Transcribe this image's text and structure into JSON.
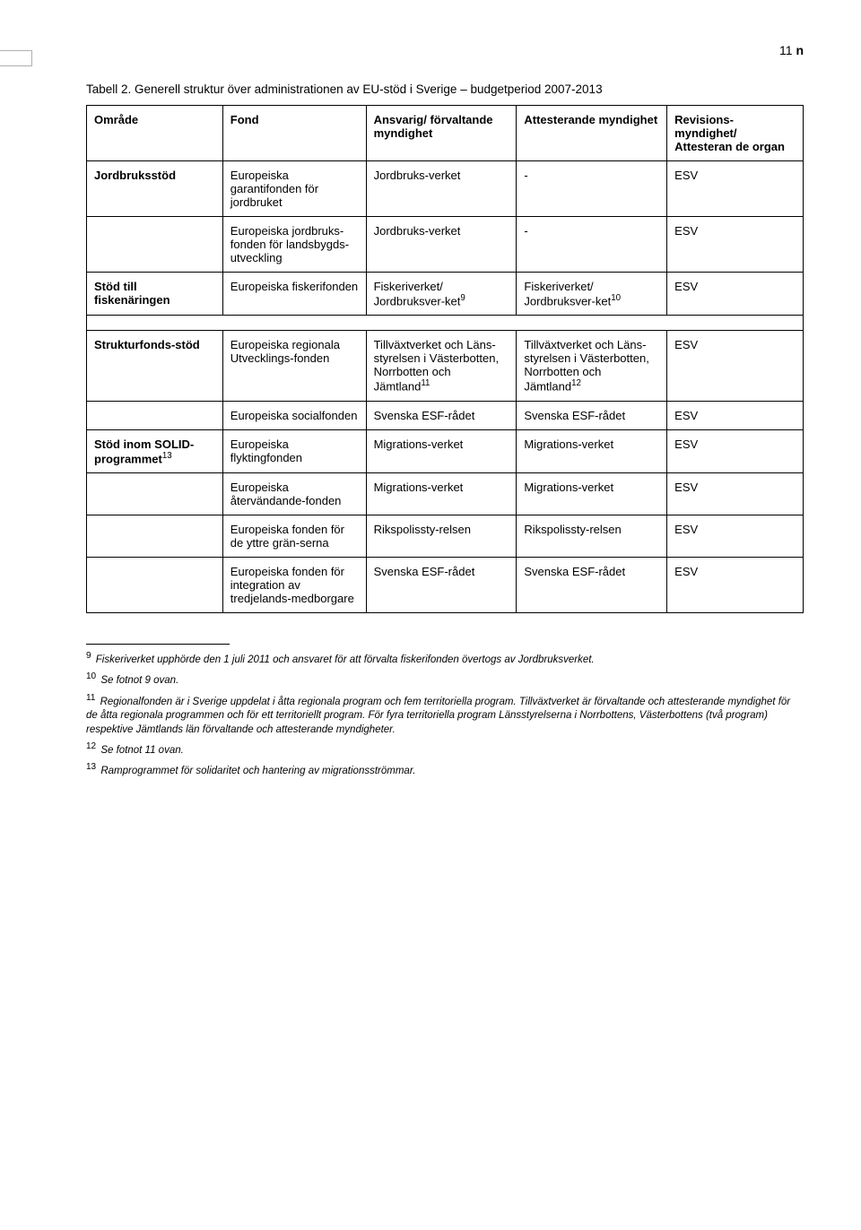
{
  "page_number_label": "11",
  "page_number_suffix": "n",
  "caption": "Tabell 2. Generell struktur över administrationen av EU-stöd i Sverige – budgetperiod 2007-2013",
  "headers": {
    "c1": "Område",
    "c2": "Fond",
    "c3": "Ansvarig/ förvaltande myndighet",
    "c4": "Attesterande myndighet",
    "c5": "Revisions-myndighet/ Attesteran de organ"
  },
  "groups": [
    {
      "rows": [
        {
          "c1": "Jordbruksstöd",
          "c1_bold": true,
          "c2": "Europeiska garantifonden för jordbruket",
          "c3": "Jordbruks-verket",
          "c4": "-",
          "c5": "ESV"
        },
        {
          "c1": "",
          "c2": "Europeiska jordbruks-fonden för landsbygds-utveckling",
          "c3": "Jordbruks-verket",
          "c4": "-",
          "c5": "ESV"
        },
        {
          "c1": "Stöd till fiskenäringen",
          "c1_bold": true,
          "c2": "Europeiska fiskerifonden",
          "c3": "Fiskeriverket/ Jordbruksver-ket",
          "c3_sup": "9",
          "c4": "Fiskeriverket/ Jordbruksver-ket",
          "c4_sup": "10",
          "c5": "ESV"
        }
      ]
    },
    {
      "rows": [
        {
          "c1": "Strukturfonds-stöd",
          "c1_bold": true,
          "c2": "Europeiska regionala Utvecklings-fonden",
          "c3": "Tillväxtverket och Läns-styrelsen i Västerbotten, Norrbotten och Jämtland",
          "c3_sup": "11",
          "c4": "Tillväxtverket och Läns-styrelsen i Västerbotten, Norrbotten och Jämtland",
          "c4_sup": "12",
          "c5": "ESV"
        },
        {
          "c1": "",
          "c2": "Europeiska socialfonden",
          "c3": "Svenska ESF-rådet",
          "c4": "Svenska ESF-rådet",
          "c5": "ESV"
        },
        {
          "c1": "Stöd inom SOLID-programmet",
          "c1_bold": true,
          "c1_sup": "13",
          "c2": "Europeiska flyktingfonden",
          "c3": "Migrations-verket",
          "c4": "Migrations-verket",
          "c5": "ESV"
        },
        {
          "c1": "",
          "c2": "Europeiska återvändande-fonden",
          "c3": "Migrations-verket",
          "c4": "Migrations-verket",
          "c5": "ESV"
        },
        {
          "c1": "",
          "c2": "Europeiska fonden för de yttre grän-serna",
          "c3": "Rikspolissty-relsen",
          "c4": "Rikspolissty-relsen",
          "c5": "ESV"
        },
        {
          "c1": "",
          "c2": "Europeiska fonden för integration av tredjelands-medborgare",
          "c3": "Svenska ESF-rådet",
          "c4": "Svenska ESF-rådet",
          "c5": "ESV"
        }
      ]
    }
  ],
  "footnotes": [
    {
      "num": "9",
      "text": "Fiskeriverket upphörde den 1 juli 2011 och ansvaret för att förvalta fiskerifonden övertogs av Jordbruksverket."
    },
    {
      "num": "10",
      "text": "Se fotnot 9 ovan."
    },
    {
      "num": "11",
      "text": "Regionalfonden är i Sverige uppdelat i åtta regionala program och fem territoriella program. Tillväxtverket är förvaltande och attesterande myndighet för de åtta regionala programmen och för ett territoriellt program. För fyra territoriella program Länsstyrelserna i Norrbottens, Västerbottens (två program) respektive Jämtlands län förvaltande och attesterande myndigheter."
    },
    {
      "num": "12",
      "text": "Se fotnot 11 ovan."
    },
    {
      "num": "13",
      "text": "Ramprogrammet för solidaritet och hantering av migrationsströmmar."
    }
  ]
}
